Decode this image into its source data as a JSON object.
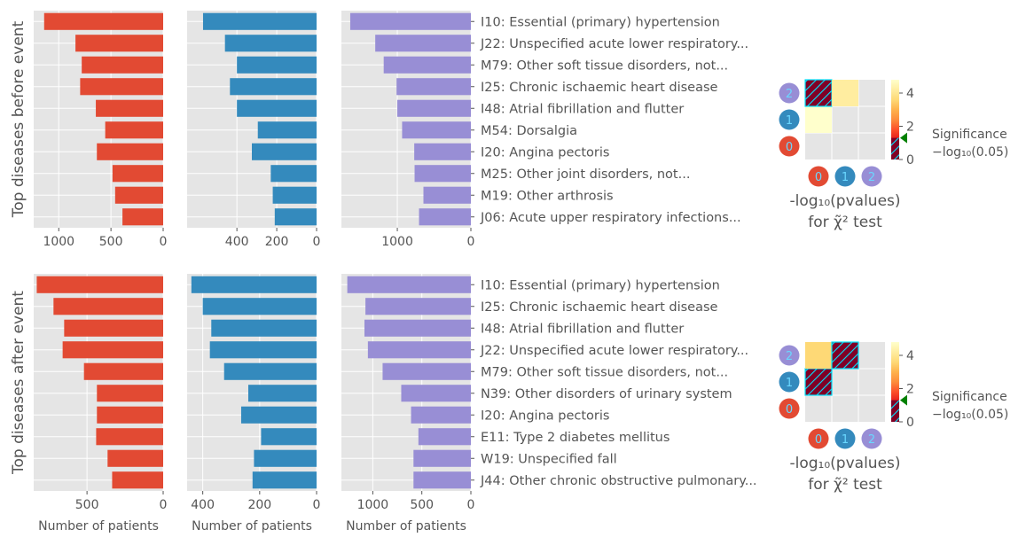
{
  "colors": {
    "series": [
      "#e24a33",
      "#348abd",
      "#988ed5"
    ],
    "panel_bg": "#e5e5e5",
    "grid": "#ffffff",
    "text": "#555555",
    "sig_marker": "#008000",
    "hatch_bg": "#800026",
    "hatch_line": "#00e5ff",
    "colorbar": [
      "#800026",
      "#bd0026",
      "#e31a1c",
      "#fc4e2a",
      "#fd8d3c",
      "#feb24c",
      "#fed976",
      "#ffeda0",
      "#ffffcc"
    ]
  },
  "common": {
    "xlabel": "Number of patients",
    "significance_label": "Significance",
    "significance_formula": "−log₁₀(0.05)",
    "heatmap_title_line1": "-log₁₀(pvalues)",
    "heatmap_title_line2": "for χ̃² test",
    "cluster_labels": [
      "0",
      "1",
      "2"
    ],
    "colorbar_ticks": [
      "0",
      "2",
      "4"
    ]
  },
  "chart_data": [
    {
      "type": "bar",
      "orientation": "horizontal",
      "ylabel": "Top diseases before event",
      "categories": [
        "I10: Essential (primary) hypertension",
        "J22: Unspecified acute lower respiratory...",
        "M79: Other soft tissue disorders, not...",
        "I25: Chronic ischaemic heart disease",
        "I48: Atrial fibrillation and flutter",
        "M54: Dorsalgia",
        "I20: Angina pectoris",
        "M25: Other joint disorders, not...",
        "M19: Other arthrosis",
        "J06: Acute upper respiratory infections..."
      ],
      "series": [
        {
          "values": [
            1140,
            840,
            780,
            795,
            645,
            555,
            635,
            485,
            460,
            390
          ],
          "xlim": [
            1240,
            0
          ],
          "xticks": [
            1000,
            500,
            0
          ]
        },
        {
          "values": [
            570,
            460,
            400,
            435,
            400,
            295,
            325,
            230,
            220,
            210
          ],
          "xlim": [
            650,
            0
          ],
          "xticks": [
            400,
            200,
            0
          ]
        },
        {
          "values": [
            1640,
            1300,
            1185,
            1010,
            1000,
            935,
            770,
            765,
            645,
            705
          ],
          "xlim": [
            1760,
            0
          ],
          "xticks": [
            1000,
            0
          ]
        }
      ],
      "heatmap": {
        "values": [
          [
            null,
            null,
            null
          ],
          [
            5,
            null,
            null
          ],
          [
            0.3,
            3.9,
            null
          ]
        ],
        "vmin": 0,
        "vmax": 4.8,
        "significance": 1.3
      }
    },
    {
      "type": "bar",
      "orientation": "horizontal",
      "ylabel": "Top diseases after event",
      "categories": [
        "I10: Essential (primary) hypertension",
        "I25: Chronic ischaemic heart disease",
        "I48: Atrial fibrillation and flutter",
        "J22: Unspecified acute lower respiratory...",
        "M79: Other soft tissue disorders, not...",
        "N39: Other disorders of urinary system",
        "I20: Angina pectoris",
        "E11: Type 2 diabetes mellitus",
        "W19: Unspecified fall",
        "J44: Other chronic obstructive pulmonary..."
      ],
      "series": [
        {
          "values": [
            830,
            720,
            650,
            660,
            520,
            435,
            435,
            440,
            365,
            335
          ],
          "xlim": [
            850,
            0
          ],
          "xticks": [
            500,
            0
          ]
        },
        {
          "values": [
            440,
            400,
            370,
            375,
            325,
            240,
            265,
            195,
            220,
            225
          ],
          "xlim": [
            455,
            0
          ],
          "xticks": [
            400,
            200,
            0
          ]
        },
        {
          "values": [
            1260,
            1075,
            1085,
            1050,
            900,
            710,
            610,
            535,
            585,
            585
          ],
          "xlim": [
            1320,
            0
          ],
          "xticks": [
            1000,
            500,
            0
          ]
        }
      ],
      "heatmap": {
        "values": [
          [
            null,
            null,
            null
          ],
          [
            0.3,
            null,
            null
          ],
          [
            3.5,
            0.5,
            null
          ]
        ],
        "vmin": 0,
        "vmax": 4.8,
        "significance": 1.3
      }
    }
  ]
}
